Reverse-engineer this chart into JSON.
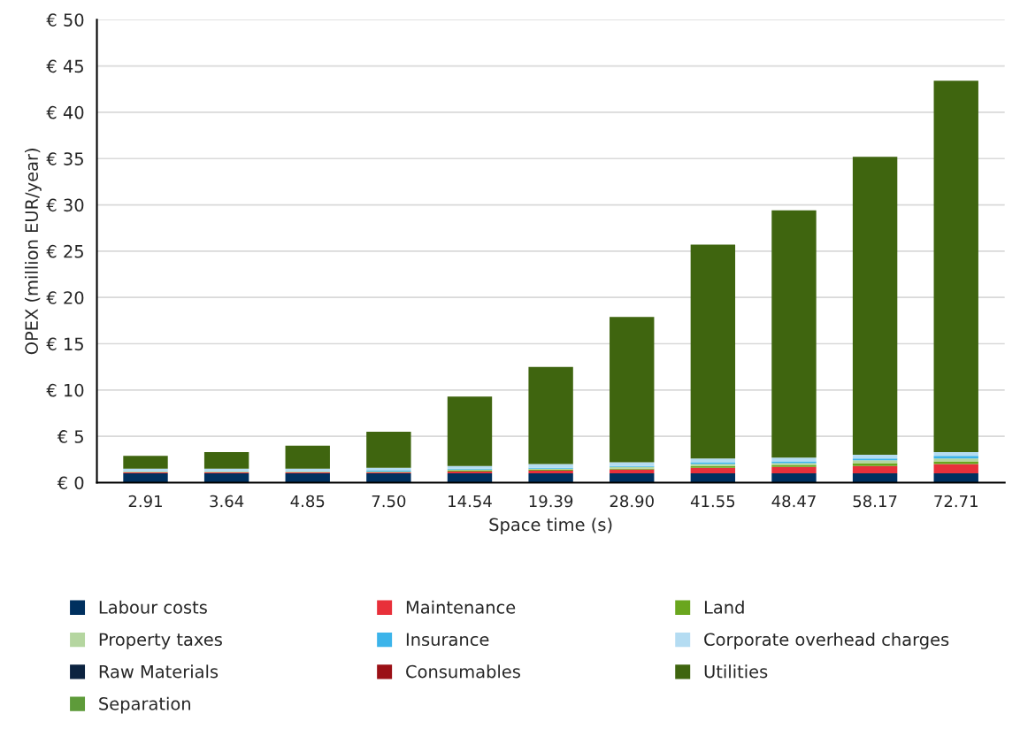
{
  "chart_data": {
    "type": "bar",
    "stacked": true,
    "xlabel": "Space time (s)",
    "ylabel": "OPEX (million EUR/year)",
    "categories": [
      "2.91",
      "3.64",
      "4.85",
      "7.50",
      "14.54",
      "19.39",
      "28.90",
      "41.55",
      "48.47",
      "58.17",
      "72.71"
    ],
    "series": [
      {
        "name": "Labour costs",
        "color": "#00305f",
        "values": [
          1.0,
          1.0,
          1.0,
          1.0,
          1.0,
          1.0,
          1.0,
          1.0,
          1.0,
          1.0,
          1.0
        ]
      },
      {
        "name": "Maintenance",
        "color": "#e8303a",
        "values": [
          0.1,
          0.1,
          0.1,
          0.1,
          0.2,
          0.3,
          0.4,
          0.6,
          0.7,
          0.8,
          1.0
        ]
      },
      {
        "name": "Land",
        "color": "#6aa61e",
        "values": [
          0,
          0,
          0,
          0,
          0.1,
          0.1,
          0.1,
          0.2,
          0.2,
          0.3,
          0.3
        ]
      },
      {
        "name": "Property taxes",
        "color": "#b5d6a0",
        "values": [
          0.1,
          0.1,
          0.1,
          0.1,
          0.1,
          0.1,
          0.2,
          0.2,
          0.2,
          0.3,
          0.3
        ]
      },
      {
        "name": "Insurance",
        "color": "#3cb4ea",
        "values": [
          0,
          0,
          0,
          0.1,
          0.1,
          0.1,
          0.1,
          0.2,
          0.2,
          0.2,
          0.3
        ]
      },
      {
        "name": "Corporate overhead charges",
        "color": "#b4dcf2",
        "values": [
          0.3,
          0.3,
          0.3,
          0.3,
          0.3,
          0.4,
          0.4,
          0.4,
          0.4,
          0.4,
          0.4
        ]
      },
      {
        "name": "Raw Materials",
        "color": "#0c2340",
        "values": [
          0,
          0,
          0,
          0,
          0,
          0,
          0,
          0,
          0,
          0,
          0
        ]
      },
      {
        "name": "Consumables",
        "color": "#9b1016",
        "values": [
          0,
          0,
          0,
          0,
          0,
          0,
          0,
          0,
          0,
          0,
          0
        ]
      },
      {
        "name": "Utilities",
        "color": "#3f650f",
        "values": [
          1.4,
          1.8,
          2.5,
          3.9,
          7.5,
          10.5,
          15.7,
          23.1,
          26.7,
          32.2,
          40.1
        ]
      },
      {
        "name": "Separation",
        "color": "#5e9b3a",
        "values": [
          0,
          0,
          0,
          0,
          0,
          0,
          0,
          0,
          0,
          0,
          0
        ]
      }
    ],
    "ylim": [
      0,
      50
    ],
    "yticks": [
      {
        "value": 0,
        "label": "€ 0"
      },
      {
        "value": 5,
        "label": "€ 5"
      },
      {
        "value": 10,
        "label": "€ 10"
      },
      {
        "value": 15,
        "label": "€ 15"
      },
      {
        "value": 20,
        "label": "€ 20"
      },
      {
        "value": 25,
        "label": "€ 25"
      },
      {
        "value": 30,
        "label": "€ 30"
      },
      {
        "value": 35,
        "label": "€ 35"
      },
      {
        "value": 40,
        "label": "€ 40"
      },
      {
        "value": 45,
        "label": "€ 45"
      },
      {
        "value": 50,
        "label": "€ 50"
      }
    ],
    "grid": "y",
    "legend": "bottom"
  }
}
